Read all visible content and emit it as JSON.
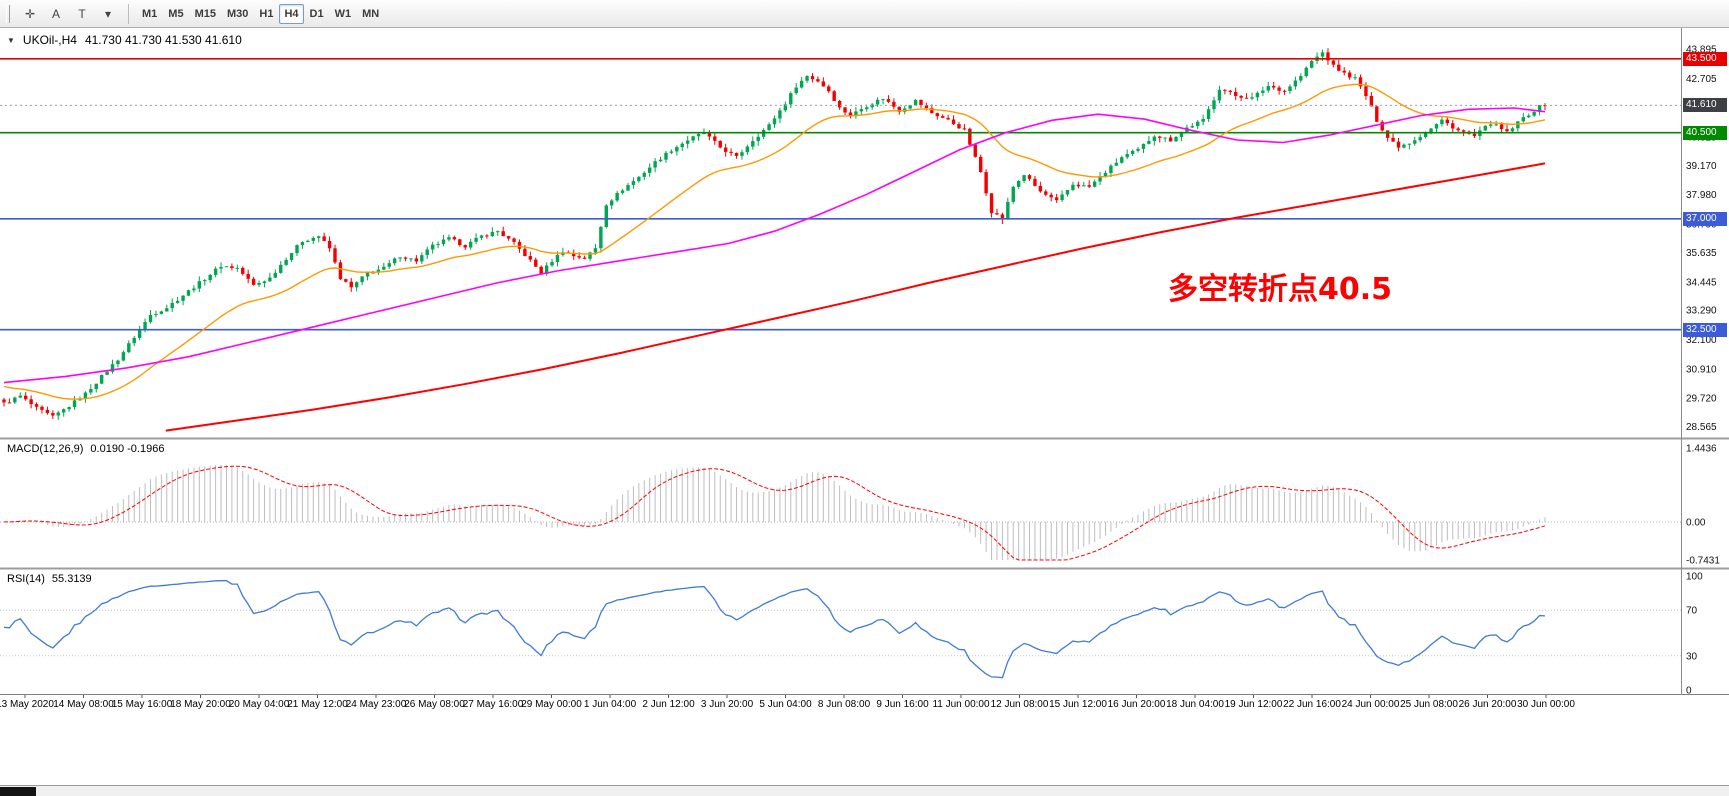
{
  "toolbar": {
    "icons": [
      {
        "name": "crosshair-icon",
        "glyph": "✛"
      },
      {
        "name": "text-annotation-icon",
        "glyph": "A"
      },
      {
        "name": "text-label-icon",
        "glyph": "T"
      },
      {
        "name": "draw-tools-dropdown-icon",
        "glyph": "▾"
      }
    ],
    "timeframes": [
      {
        "label": "M1",
        "active": false
      },
      {
        "label": "M5",
        "active": false
      },
      {
        "label": "M15",
        "active": false
      },
      {
        "label": "M30",
        "active": false
      },
      {
        "label": "H1",
        "active": false
      },
      {
        "label": "H4",
        "active": true
      },
      {
        "label": "D1",
        "active": false
      },
      {
        "label": "W1",
        "active": false
      },
      {
        "label": "MN",
        "active": false
      }
    ]
  },
  "chart": {
    "collapse_glyph": "▼",
    "symbol_label": "UKOil-,H4",
    "ohlc_label": "41.730 41.730 41.530 41.610",
    "annotation": "多空转折点40.5",
    "price_range": {
      "min": 28.1,
      "max": 44.75
    },
    "price_ticks": [
      43.895,
      42.705,
      41.515,
      40.325,
      39.17,
      37.98,
      36.79,
      35.635,
      34.445,
      33.29,
      32.1,
      30.91,
      29.72,
      28.565
    ],
    "current_price": {
      "value": 41.61,
      "label": "41.610",
      "color": "#3f3f46"
    },
    "hlines": [
      {
        "value": 43.5,
        "label": "43.500",
        "color": "#e60000"
      },
      {
        "value": 40.5,
        "label": "40.500",
        "color": "#008a00"
      },
      {
        "value": 37.0,
        "label": "37.000",
        "color": "#3c5bd7"
      },
      {
        "value": 32.5,
        "label": "32.500",
        "color": "#3c5bd7"
      }
    ],
    "num_candles": 285,
    "colors": {
      "bull": "#00a651",
      "bear": "#f40000",
      "ma_fast": "#ff9900",
      "ma_medium": "#ff00ff",
      "ma_slow": "#ff0000"
    },
    "price_anchors": [
      [
        0,
        29.5
      ],
      [
        3,
        29.8
      ],
      [
        6,
        29.3
      ],
      [
        9,
        28.95
      ],
      [
        12,
        29.4
      ],
      [
        15,
        29.9
      ],
      [
        18,
        30.6
      ],
      [
        21,
        31.3
      ],
      [
        24,
        32.2
      ],
      [
        27,
        33.1
      ],
      [
        30,
        33.4
      ],
      [
        33,
        33.9
      ],
      [
        36,
        34.4
      ],
      [
        40,
        35.1
      ],
      [
        43,
        35.0
      ],
      [
        46,
        34.3
      ],
      [
        49,
        34.6
      ],
      [
        52,
        35.4
      ],
      [
        55,
        36.1
      ],
      [
        58,
        36.3
      ],
      [
        60,
        35.8
      ],
      [
        62,
        34.6
      ],
      [
        64,
        34.2
      ],
      [
        67,
        34.8
      ],
      [
        70,
        35.0
      ],
      [
        73,
        35.5
      ],
      [
        76,
        35.3
      ],
      [
        79,
        35.9
      ],
      [
        82,
        36.2
      ],
      [
        85,
        35.9
      ],
      [
        88,
        36.3
      ],
      [
        91,
        36.5
      ],
      [
        94,
        36.0
      ],
      [
        97,
        35.3
      ],
      [
        99,
        34.8
      ],
      [
        101,
        35.3
      ],
      [
        103,
        35.7
      ],
      [
        105,
        35.5
      ],
      [
        107,
        35.4
      ],
      [
        109,
        35.8
      ],
      [
        111,
        37.6
      ],
      [
        114,
        38.2
      ],
      [
        117,
        38.7
      ],
      [
        120,
        39.3
      ],
      [
        123,
        39.8
      ],
      [
        126,
        40.2
      ],
      [
        129,
        40.5
      ],
      [
        132,
        39.9
      ],
      [
        135,
        39.5
      ],
      [
        138,
        40.2
      ],
      [
        141,
        40.8
      ],
      [
        144,
        41.7
      ],
      [
        146,
        42.4
      ],
      [
        148,
        42.8
      ],
      [
        150,
        42.6
      ],
      [
        152,
        42.2
      ],
      [
        154,
        41.5
      ],
      [
        156,
        41.2
      ],
      [
        159,
        41.6
      ],
      [
        162,
        41.9
      ],
      [
        165,
        41.4
      ],
      [
        168,
        41.8
      ],
      [
        171,
        41.3
      ],
      [
        174,
        41.0
      ],
      [
        177,
        40.6
      ],
      [
        180,
        38.9
      ],
      [
        182,
        37.3
      ],
      [
        184,
        37.0
      ],
      [
        186,
        38.3
      ],
      [
        188,
        38.8
      ],
      [
        191,
        38.1
      ],
      [
        194,
        37.7
      ],
      [
        197,
        38.4
      ],
      [
        200,
        38.3
      ],
      [
        203,
        38.9
      ],
      [
        206,
        39.5
      ],
      [
        209,
        39.8
      ],
      [
        212,
        40.4
      ],
      [
        215,
        40.2
      ],
      [
        218,
        40.7
      ],
      [
        221,
        41.0
      ],
      [
        224,
        42.3
      ],
      [
        227,
        42.0
      ],
      [
        230,
        41.9
      ],
      [
        233,
        42.4
      ],
      [
        236,
        42.2
      ],
      [
        239,
        42.8
      ],
      [
        241,
        43.4
      ],
      [
        243,
        43.75
      ],
      [
        245,
        43.2
      ],
      [
        247,
        42.9
      ],
      [
        249,
        42.7
      ],
      [
        251,
        42.0
      ],
      [
        253,
        41.0
      ],
      [
        255,
        40.3
      ],
      [
        257,
        39.95
      ],
      [
        259,
        40.1
      ],
      [
        262,
        40.5
      ],
      [
        265,
        41.0
      ],
      [
        268,
        40.6
      ],
      [
        271,
        40.35
      ],
      [
        274,
        40.9
      ],
      [
        277,
        40.5
      ],
      [
        280,
        41.1
      ],
      [
        283,
        41.55
      ],
      [
        284,
        41.61
      ]
    ],
    "ma_medium_anchors": [
      [
        0,
        30.35
      ],
      [
        0.04,
        30.6
      ],
      [
        0.08,
        30.95
      ],
      [
        0.12,
        31.4
      ],
      [
        0.16,
        32.0
      ],
      [
        0.2,
        32.6
      ],
      [
        0.24,
        33.2
      ],
      [
        0.28,
        33.8
      ],
      [
        0.32,
        34.4
      ],
      [
        0.36,
        34.9
      ],
      [
        0.4,
        35.3
      ],
      [
        0.44,
        35.7
      ],
      [
        0.47,
        36.0
      ],
      [
        0.5,
        36.5
      ],
      [
        0.53,
        37.2
      ],
      [
        0.56,
        38.0
      ],
      [
        0.59,
        38.9
      ],
      [
        0.62,
        39.8
      ],
      [
        0.65,
        40.5
      ],
      [
        0.68,
        41.0
      ],
      [
        0.71,
        41.25
      ],
      [
        0.74,
        41.05
      ],
      [
        0.77,
        40.6
      ],
      [
        0.8,
        40.2
      ],
      [
        0.83,
        40.1
      ],
      [
        0.86,
        40.4
      ],
      [
        0.89,
        40.8
      ],
      [
        0.92,
        41.2
      ],
      [
        0.95,
        41.45
      ],
      [
        0.98,
        41.5
      ],
      [
        1,
        41.35
      ]
    ],
    "ma_slow_anchors": [
      [
        0.105,
        28.4
      ],
      [
        0.15,
        28.8
      ],
      [
        0.2,
        29.25
      ],
      [
        0.25,
        29.75
      ],
      [
        0.3,
        30.3
      ],
      [
        0.35,
        30.9
      ],
      [
        0.4,
        31.55
      ],
      [
        0.45,
        32.25
      ],
      [
        0.5,
        32.95
      ],
      [
        0.55,
        33.65
      ],
      [
        0.6,
        34.4
      ],
      [
        0.65,
        35.1
      ],
      [
        0.7,
        35.8
      ],
      [
        0.75,
        36.45
      ],
      [
        0.8,
        37.05
      ],
      [
        0.85,
        37.6
      ],
      [
        0.9,
        38.15
      ],
      [
        0.95,
        38.7
      ],
      [
        1,
        39.25
      ]
    ]
  },
  "macd": {
    "label": "MACD(12,26,9)",
    "values": "0.0190 -0.1966",
    "range": {
      "min": -0.7431,
      "max": 1.4436
    },
    "ticks": [
      {
        "value": 1.4436,
        "label": "1.4436"
      },
      {
        "value": 0,
        "label": "0.00"
      },
      {
        "value": -0.7431,
        "label": "-0.7431"
      }
    ],
    "colors": {
      "histogram": "#bdbdbd",
      "signal": "#ff0000"
    }
  },
  "rsi": {
    "label": "RSI(14)",
    "value": "55.3139",
    "color": "#3e7bd6",
    "levels": [
      70,
      30
    ],
    "ticks": [
      {
        "value": 100,
        "label": "100"
      },
      {
        "value": 70,
        "label": "70"
      },
      {
        "value": 30,
        "label": "30"
      },
      {
        "value": 0,
        "label": "0"
      }
    ]
  },
  "time_axis": [
    "13 May 2020",
    "14 May 08:00",
    "15 May 16:00",
    "18 May 20:00",
    "20 May 04:00",
    "21 May 12:00",
    "24 May 23:00",
    "26 May 08:00",
    "27 May 16:00",
    "29 May 00:00",
    "1 Jun 04:00",
    "2 Jun 12:00",
    "3 Jun 20:00",
    "5 Jun 04:00",
    "8 Jun 08:00",
    "9 Jun 16:00",
    "11 Jun 00:00",
    "12 Jun 08:00",
    "15 Jun 12:00",
    "16 Jun 20:00",
    "18 Jun 04:00",
    "19 Jun 12:00",
    "22 Jun 16:00",
    "24 Jun 00:00",
    "25 Jun 08:00",
    "26 Jun 20:00",
    "30 Jun 00:00"
  ]
}
